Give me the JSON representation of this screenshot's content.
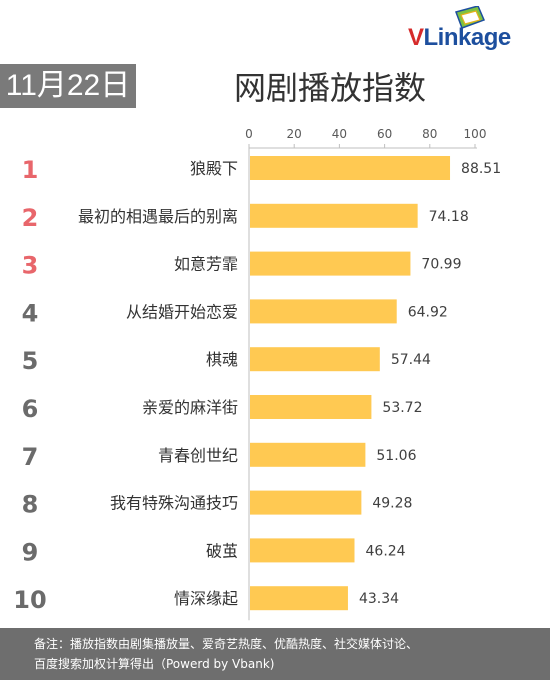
{
  "brand": {
    "logo_v": "V",
    "logo_rest": "Linkage"
  },
  "header": {
    "date": "11月22日",
    "title": "网剧播放指数"
  },
  "chart_data": {
    "type": "bar",
    "orientation": "horizontal",
    "title": "网剧播放指数",
    "ranks": [
      "1",
      "2",
      "3",
      "4",
      "5",
      "6",
      "7",
      "8",
      "9",
      "10"
    ],
    "categories": [
      "狼殿下",
      "最初的相遇最后的别离",
      "如意芳霏",
      "从结婚开始恋爱",
      "棋魂",
      "亲爱的麻洋街",
      "青春创世纪",
      "我有特殊沟通技巧",
      "破茧",
      "情深缘起"
    ],
    "values": [
      88.51,
      74.18,
      70.99,
      64.92,
      57.44,
      53.72,
      51.06,
      49.28,
      46.24,
      43.34
    ],
    "value_labels": [
      "88.51",
      "74.18",
      "70.99",
      "64.92",
      "57.44",
      "53.72",
      "51.06",
      "49.28",
      "46.24",
      "43.34"
    ],
    "xlim": [
      0,
      100
    ],
    "x_ticks": [
      0,
      20,
      40,
      60,
      80,
      100
    ],
    "x_tick_labels": [
      "0",
      "20",
      "40",
      "60",
      "80",
      "100"
    ],
    "axis_position": "top",
    "grid": false,
    "legend": "none",
    "colors": {
      "bar": "#ffc952",
      "rank_top3": "#e8666b",
      "rank_other": "#6b6b6b",
      "axis": "#bfbfbf"
    }
  },
  "footer": {
    "line1": "备注：播放指数由剧集播放量、爱奇艺热度、优酷热度、社交媒体讨论、",
    "line2": "百度搜索加权计算得出（Powerd by Vbank)"
  }
}
